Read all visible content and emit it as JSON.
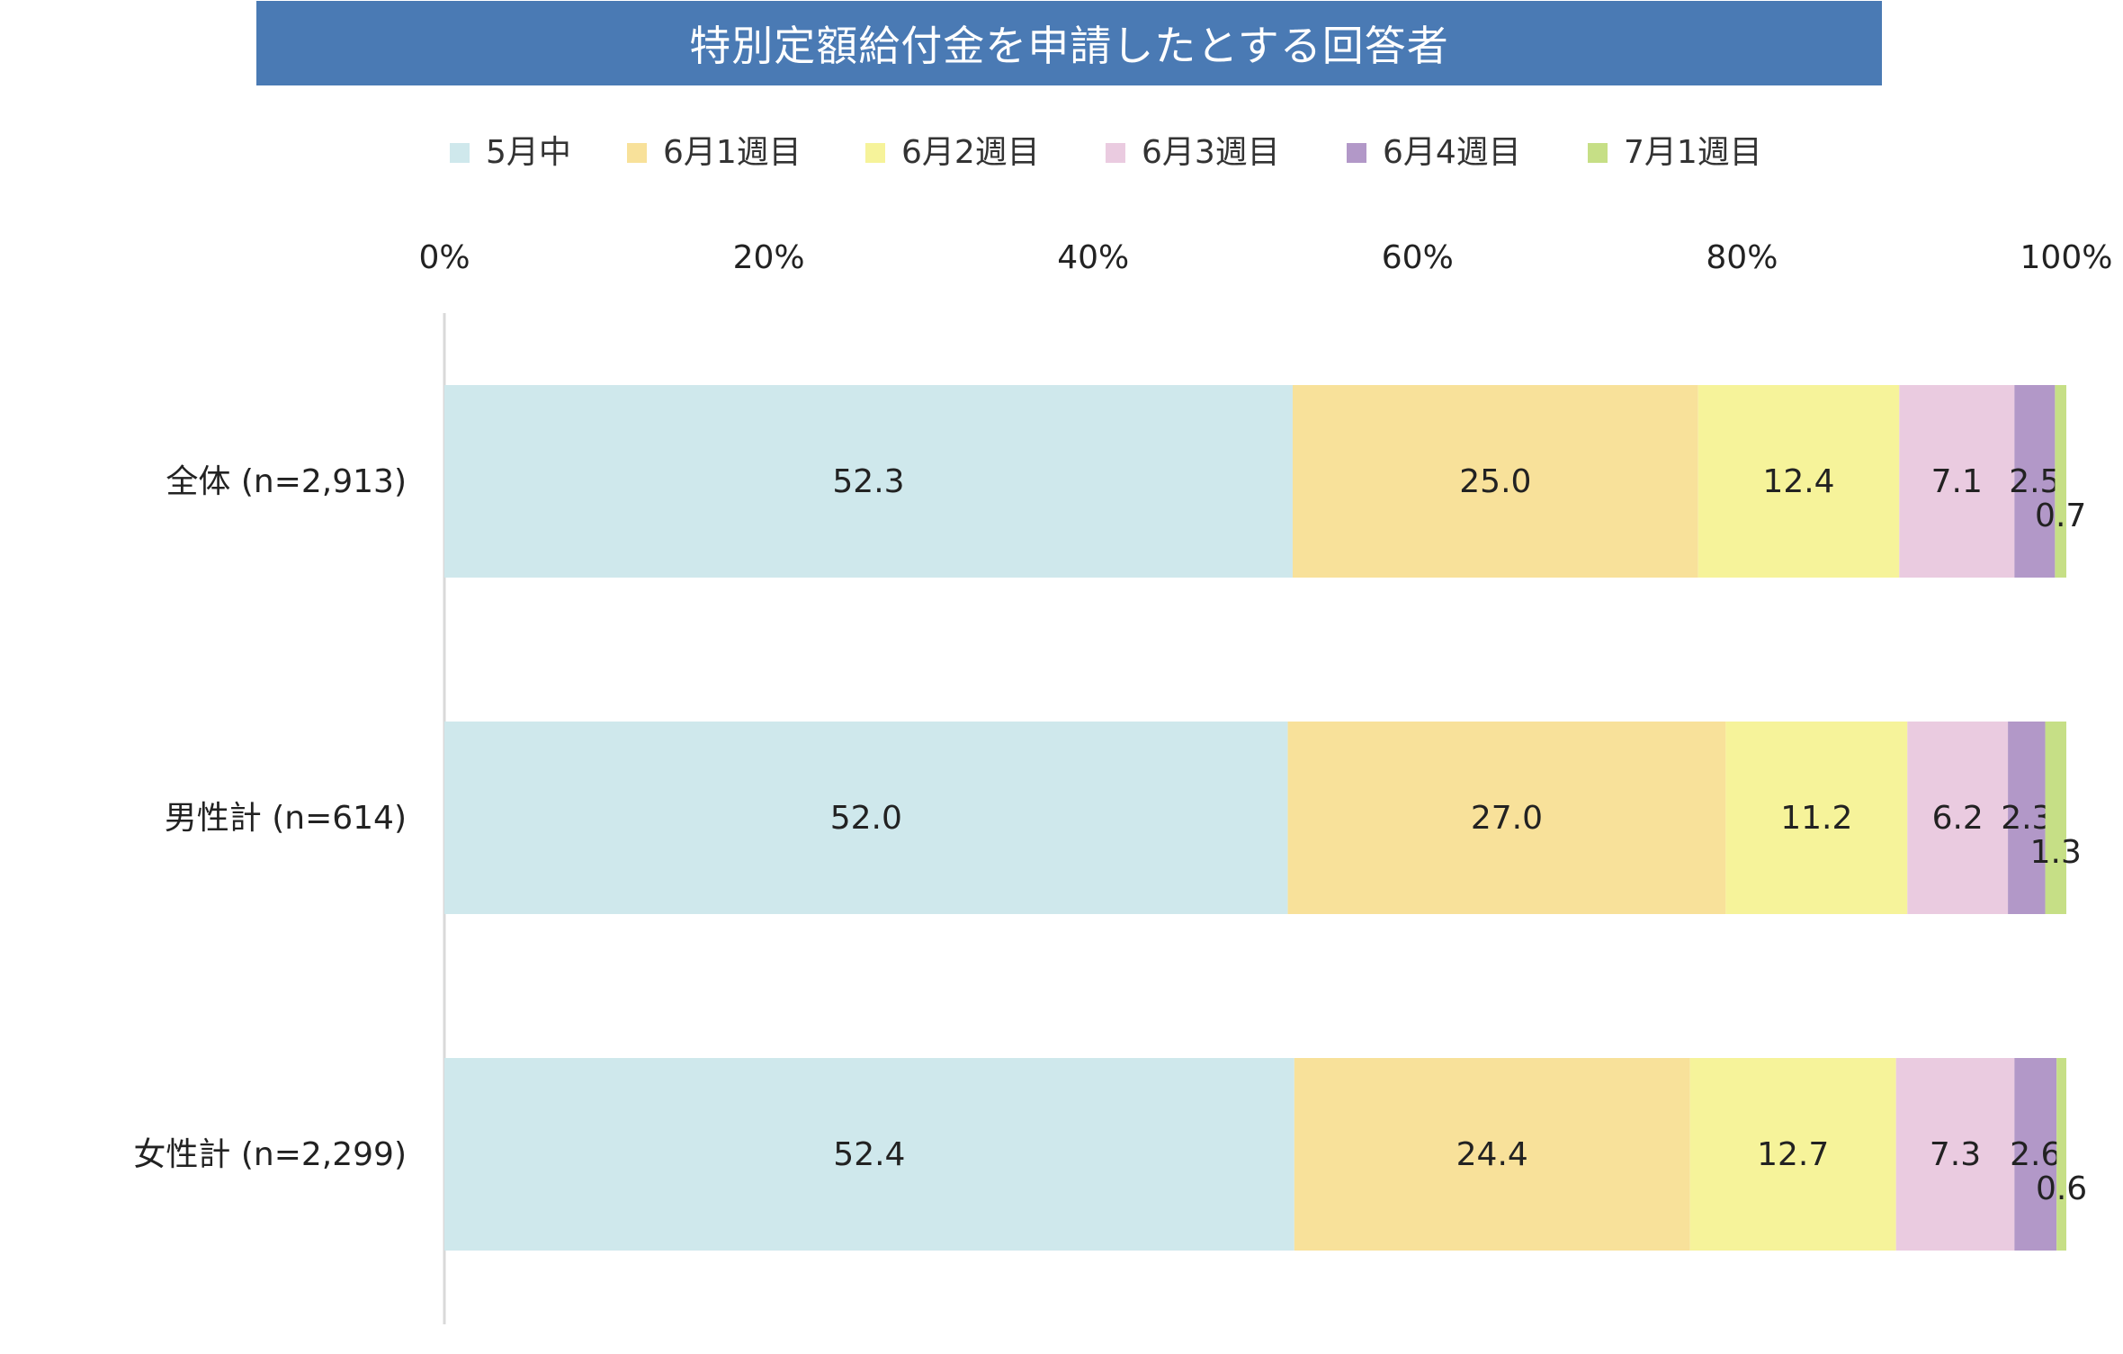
{
  "title": "特別定額給付金を申請したとする回答者",
  "chart_data": {
    "type": "bar",
    "orientation": "horizontal",
    "stacked": true,
    "percent_axis": true,
    "xlim": [
      0,
      100
    ],
    "xticks": [
      "0%",
      "20%",
      "40%",
      "60%",
      "80%",
      "100%"
    ],
    "xtick_values": [
      0,
      20,
      40,
      60,
      80,
      100
    ],
    "legend_position": "top",
    "categories": [
      "全体 (n=2,913)",
      "男性計 (n=614)",
      "女性計 (n=2,299)"
    ],
    "series": [
      {
        "name": "5月中",
        "color": "#cfe8ec",
        "values": [
          52.3,
          52.0,
          52.4
        ],
        "labels": [
          "52.3",
          "52.0",
          "52.4"
        ]
      },
      {
        "name": "6月1週目",
        "color": "#f8e19a",
        "values": [
          25.0,
          27.0,
          24.4
        ],
        "labels": [
          "25.0",
          "27.0",
          "24.4"
        ]
      },
      {
        "name": "6月2週目",
        "color": "#f6f39a",
        "values": [
          12.4,
          11.2,
          12.7
        ],
        "labels": [
          "12.4",
          "11.2",
          "12.7"
        ]
      },
      {
        "name": "6月3週目",
        "color": "#eacbe0",
        "values": [
          7.1,
          6.2,
          7.3
        ],
        "labels": [
          "7.1",
          "6.2",
          "7.3"
        ]
      },
      {
        "name": "6月4週目",
        "color": "#b298c8",
        "values": [
          2.5,
          2.3,
          2.6
        ],
        "labels": [
          "2.5",
          "2.3",
          "2.6"
        ]
      },
      {
        "name": "7月1週目",
        "color": "#c6df86",
        "values": [
          0.7,
          1.3,
          0.6
        ],
        "labels": [
          "0.7",
          "1.3",
          "0.6"
        ]
      }
    ]
  }
}
